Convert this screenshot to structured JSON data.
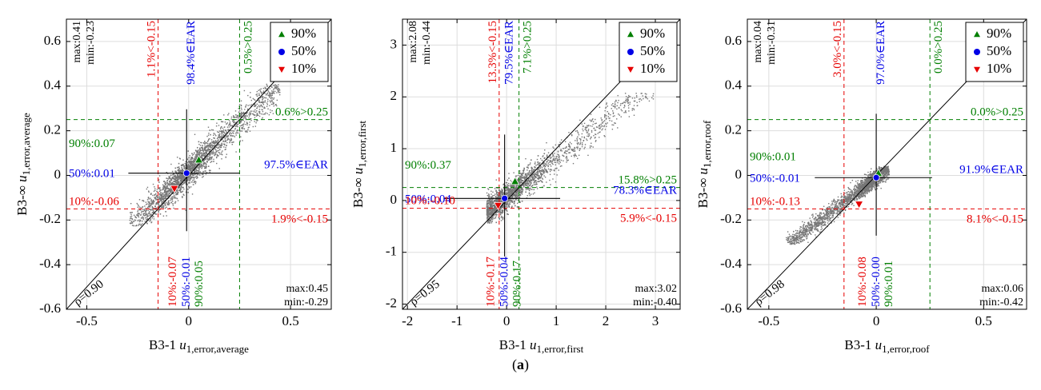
{
  "figure_label": {
    "prefix": "(",
    "letter": "a",
    "suffix": ")"
  },
  "legend_entries": [
    "90%",
    "50%",
    "10%"
  ],
  "colors": {
    "p90": "#007f00",
    "p50": "#0000e6",
    "p10": "#e60000",
    "scatter": "#777777",
    "grid": "#dddddd"
  },
  "chart_data": [
    {
      "type": "scatter",
      "id": "average",
      "xlabel": {
        "prefix": "B3-1 ",
        "var": "u",
        "sub": "1,error,average"
      },
      "ylabel": {
        "prefix": "B3-∞ ",
        "var": "u",
        "sub": "1,error,average"
      },
      "xlim": [
        -0.6,
        0.7
      ],
      "ylim": [
        -0.6,
        0.7
      ],
      "xticks": [
        -0.5,
        0,
        0.5
      ],
      "xtick_labels": [
        "-0.5",
        "0",
        "0.5"
      ],
      "yticks": [
        -0.6,
        -0.4,
        -0.2,
        0,
        0.2,
        0.4,
        0.6
      ],
      "ytick_labels": [
        "-0.6",
        "-0.4",
        "-0.2",
        "0",
        "0.2",
        "0.4",
        "0.6"
      ],
      "thresholds": [
        -0.15,
        0.25
      ],
      "cloud": {
        "x_range": [
          -0.29,
          0.45
        ],
        "y_range": [
          -0.23,
          0.41
        ],
        "rho": 0.9
      },
      "p90": [
        0.05,
        0.07
      ],
      "p50": [
        -0.01,
        0.01
      ],
      "p10": [
        -0.07,
        -0.06
      ],
      "texts": {
        "max_top": "max:0.41",
        "min_top": "min:-0.23",
        "max_br": "max:0.45",
        "min_br": "min:-0.29",
        "rho": "ρ=0.90",
        "x_lt": "1.1%<-0.15",
        "x_ear": "98.4%∈EAR",
        "x_gt": "0.5%>0.25",
        "y_gt": "0.6%>0.25",
        "y_ear": "97.5%∈EAR",
        "y_lt": "1.9%<-0.15",
        "y90": "90%:0.07",
        "y50": "50%:0.01",
        "y10": "10%:-0.06",
        "x10": "10%:-0.07",
        "x50": "50%:-0.01",
        "x90": "90%:0.05"
      }
    },
    {
      "type": "scatter",
      "id": "first",
      "xlabel": {
        "prefix": "B3-1 ",
        "var": "u",
        "sub": "1,error,first"
      },
      "ylabel": {
        "prefix": "B3-∞ ",
        "var": "u",
        "sub": "1,error,first"
      },
      "xlim": [
        -2.1,
        3.5
      ],
      "ylim": [
        -2.1,
        3.5
      ],
      "xticks": [
        -2,
        -1,
        0,
        1,
        2,
        3
      ],
      "xtick_labels": [
        "-2",
        "-1",
        "0",
        "1",
        "2",
        "3"
      ],
      "yticks": [
        -2,
        -1,
        0,
        1,
        2,
        3
      ],
      "ytick_labels": [
        "-2",
        "-1",
        "0",
        "1",
        "2",
        "3"
      ],
      "thresholds": [
        -0.15,
        0.25
      ],
      "cloud": {
        "x_range": [
          -0.4,
          3.02
        ],
        "y_range": [
          -0.44,
          2.08
        ],
        "rho": 0.95
      },
      "p90": [
        0.17,
        0.37
      ],
      "p50": [
        -0.04,
        0.04
      ],
      "p10": [
        -0.17,
        -0.1
      ],
      "texts": {
        "max_top": "max:2.08",
        "min_top": "min:-0.44",
        "max_br": "max:3.02",
        "min_br": "min:-0.40",
        "rho": "ρ=0.95",
        "x_lt": "13.3%<-0.15",
        "x_ear": "79.5%∈EAR",
        "x_gt": "7.1%>0.25",
        "y_gt": "15.8%>0.25",
        "y_ear": "78.3%∈EAR",
        "y_lt": "5.9%<-0.15",
        "y90": "90%:0.37",
        "y50": "50%:0.04",
        "y10": "10%:-0.10",
        "x10": "10%:-0.17",
        "x50": "50%:-0.04",
        "x90": "90%:0.17"
      }
    },
    {
      "type": "scatter",
      "id": "roof",
      "xlabel": {
        "prefix": "B3-1 ",
        "var": "u",
        "sub": "1,error,roof"
      },
      "ylabel": {
        "prefix": "B3-∞ ",
        "var": "u",
        "sub": "1,error,roof"
      },
      "xlim": [
        -0.6,
        0.7
      ],
      "ylim": [
        -0.6,
        0.7
      ],
      "xticks": [
        -0.5,
        0,
        0.5
      ],
      "xtick_labels": [
        "-0.5",
        "0",
        "0.5"
      ],
      "yticks": [
        -0.6,
        -0.4,
        -0.2,
        0,
        0.2,
        0.4,
        0.6
      ],
      "ytick_labels": [
        "-0.6",
        "-0.4",
        "-0.2",
        "0",
        "0.2",
        "0.4",
        "0.6"
      ],
      "thresholds": [
        -0.15,
        0.25
      ],
      "cloud": {
        "x_range": [
          -0.42,
          0.06
        ],
        "y_range": [
          -0.31,
          0.04
        ],
        "rho": 0.98
      },
      "p90": [
        0.01,
        0.01
      ],
      "p50": [
        0.0,
        -0.01
      ],
      "p10": [
        -0.08,
        -0.13
      ],
      "texts": {
        "max_top": "max:0.04",
        "min_top": "min:-0.31",
        "max_br": "max:0.06",
        "min_br": "min:-0.42",
        "rho": "ρ=0.98",
        "x_lt": "3.0%<-0.15",
        "x_ear": "97.0%∈EAR",
        "x_gt": "0.0%>0.25",
        "y_gt": "0.0%>0.25",
        "y_ear": "91.9%∈EAR",
        "y_lt": "8.1%<-0.15",
        "y90": "90%:0.01",
        "y50": "50%:-0.01",
        "y10": "10%:-0.13",
        "x10": "10%:-0.08",
        "x50": "50%:-0.00",
        "x90": "90%:0.01"
      }
    }
  ]
}
